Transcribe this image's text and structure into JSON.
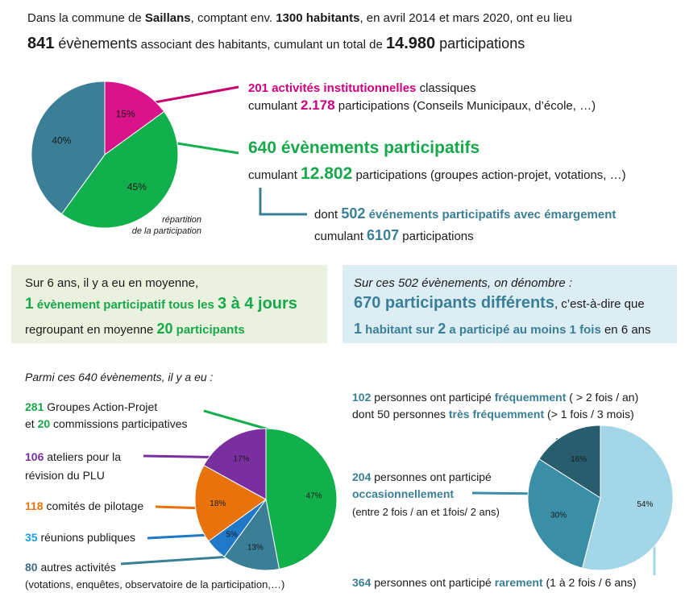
{
  "header": {
    "line1_a": "Dans la commune de ",
    "line1_b": "Saillans",
    "line1_c": ", comptant env. ",
    "line1_d": "1300 habitants",
    "line1_e": ",  en  avril 2014 et mars 2020, ont eu lieu",
    "line2_a": "841",
    "line2_b": " évènements",
    "line2_c": " associant des habitants, cumulant un total de ",
    "line2_d": "14.980",
    "line2_e": " participations"
  },
  "top_info": {
    "inst_count": "201 activités institutionnelles",
    "inst_rest": " classiques",
    "inst_l2_a": "cumulant ",
    "inst_l2_b": "2.178",
    "inst_l2_c": " participations (Conseils Municipaux, d’école, …)",
    "part_title": "640 évènements participatifs",
    "part_l2_a": "cumulant ",
    "part_l2_b": "12.802",
    "part_l2_c": " participations (groupes action-projet, votations, …)",
    "em_l1_a": "dont ",
    "em_l1_b": "502",
    "em_l1_c": " événements participatifs avec émargement",
    "em_l2_a": "cumulant ",
    "em_l2_b": "6107",
    "em_l2_c": " participations",
    "note_l1": "répartition",
    "note_l2": "de la participation"
  },
  "box_left": {
    "l1": "Sur 6 ans, il y a eu en moyenne,",
    "l2_a": "1",
    "l2_b": " évènement participatif tous les ",
    "l2_c": "3 à 4 jours",
    "l3_a": "regroupant en moyenne ",
    "l3_b": "20",
    "l3_c": " participants"
  },
  "box_right": {
    "l1": "Sur ces 502 évènements, on dénombre :",
    "l2_a": "670 participants différents",
    "l2_b": ", c’est-à-dire que",
    "l3_a": "1",
    "l3_b": " habitant sur ",
    "l3_c": "2",
    "l3_d": " a participé au moins ",
    "l3_e": "1 fois",
    "l3_f": " en 6 ans"
  },
  "bottom_left": {
    "intro": "Parmi ces 640 évènements, il y a eu :",
    "i1_a": "281",
    "i1_b": " Groupes Action-Projet",
    "i1_c": "et ",
    "i1_d": "20",
    "i1_e": " commissions participatives",
    "i2_a": "106",
    "i2_b": " ateliers pour la",
    "i2_c": "révision du PLU",
    "i3_a": "118",
    "i3_b": " comités de pilotage",
    "i4_a": "35",
    "i4_b": " réunions publiques",
    "i5_a": "80",
    "i5_b": " autres activités",
    "i5_c": "(votations, enquêtes, observatoire de la participation,…)"
  },
  "bottom_right": {
    "f_a": "102",
    "f_b": " personnes ont participé ",
    "f_c": "fréquemment",
    "f_d": "  ( > 2 fois / an)",
    "tf_a": "dont 50 personnes ",
    "tf_b": "très fréquemment",
    "tf_c": "  (> 1 fois / 3 mois)",
    "o_a": "204",
    "o_b": " personnes ont participé",
    "o_c": "occasionnellement",
    "o_d": "(entre 2 fois / an et 1fois/ 2 ans)",
    "r_a": "364",
    "r_b": " personnes ont participé ",
    "r_c": "rarement",
    "r_d": "  (1 à 2 fois / 6 ans)"
  },
  "chart_data": [
    {
      "type": "pie",
      "title": "",
      "categories": [
        "activités institutionnelles",
        "évènements participatifs",
        "évènements participatifs avec émargement"
      ],
      "values": [
        15,
        45,
        40
      ],
      "labels": [
        "15%",
        "45%",
        "40%"
      ],
      "colors": [
        "#d9138a",
        "#12b04c",
        "#3a7f96"
      ]
    },
    {
      "type": "pie",
      "title": "",
      "categories": [
        "Groupes Action-Projet et commissions participatives",
        "autres activités",
        "réunions publiques",
        "comités de pilotage",
        "ateliers pour la révision du PLU"
      ],
      "values": [
        47,
        13,
        5,
        18,
        17
      ],
      "labels": [
        "47%",
        "13%",
        "5%",
        "18%",
        "17%"
      ],
      "colors": [
        "#12b04c",
        "#3a7f96",
        "#1f78c8",
        "#e8720c",
        "#7a2fa0"
      ]
    },
    {
      "type": "pie",
      "title": "",
      "categories": [
        "rarement",
        "occasionnellement",
        "fréquemment"
      ],
      "values": [
        54,
        30,
        16
      ],
      "labels": [
        "54%",
        "30%",
        "16%"
      ],
      "colors": [
        "#a3d6e6",
        "#3a8ea5",
        "#285d6e"
      ]
    }
  ]
}
